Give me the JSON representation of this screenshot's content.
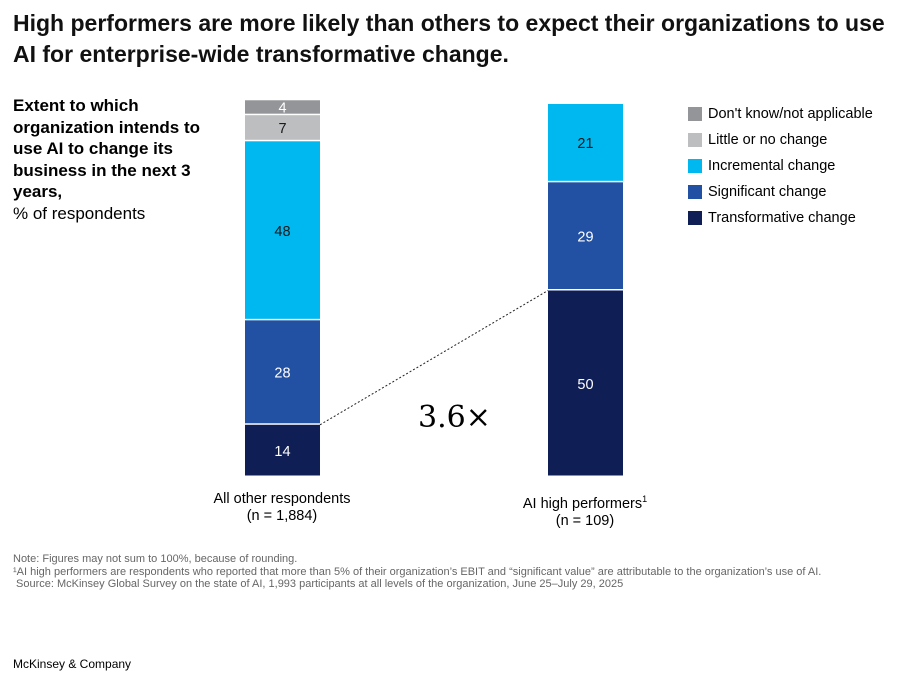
{
  "chart_data": {
    "type": "bar",
    "stacked": true,
    "title": "High performers are more likely than others to expect their organizations to use AI for enterprise-wide transformative change.",
    "subtitle_bold": "Extent to which organization intends to use AI to change its business in the next 3 years,",
    "subtitle_unit": "% of respondents",
    "categories": [
      "All other respondents",
      "AI high performers"
    ],
    "category_sub": [
      "(n = 1,884)",
      "(n = 109)"
    ],
    "footnote_mark": "1",
    "series": [
      {
        "name": "Transformative change",
        "color": "#0f1f55",
        "label_color": "#ffffff",
        "values": [
          14,
          50
        ]
      },
      {
        "name": "Significant change",
        "color": "#2251a3",
        "label_color": "#ffffff",
        "values": [
          28,
          29
        ]
      },
      {
        "name": "Incremental change",
        "color": "#00b8f0",
        "label_color": "#1a1a1a",
        "values": [
          48,
          21
        ]
      },
      {
        "name": "Little or no change",
        "color": "#bcbec0",
        "label_color": "#1a1a1a",
        "values": [
          7,
          null
        ]
      },
      {
        "name": "Don't know/not applicable",
        "color": "#939598",
        "label_color": "#ffffff",
        "values": [
          4,
          null
        ]
      }
    ],
    "legend_order": [
      "Don't know/not applicable",
      "Little or no change",
      "Incremental change",
      "Significant change",
      "Transformative change"
    ],
    "legend_placement": "top-right",
    "annotation": "3.6×"
  },
  "notes": [
    "Note: Figures may not sum to 100%, because of rounding.",
    "¹AI high performers are respondents who reported that more than 5% of their organization’s EBIT and “significant value” are attributable to the organization’s use of AI.",
    "Source: McKinsey Global Survey on the state of AI, 1,993 participants at all levels of the organization, June 25–July 29, 2025"
  ],
  "brand": "McKinsey & Company"
}
